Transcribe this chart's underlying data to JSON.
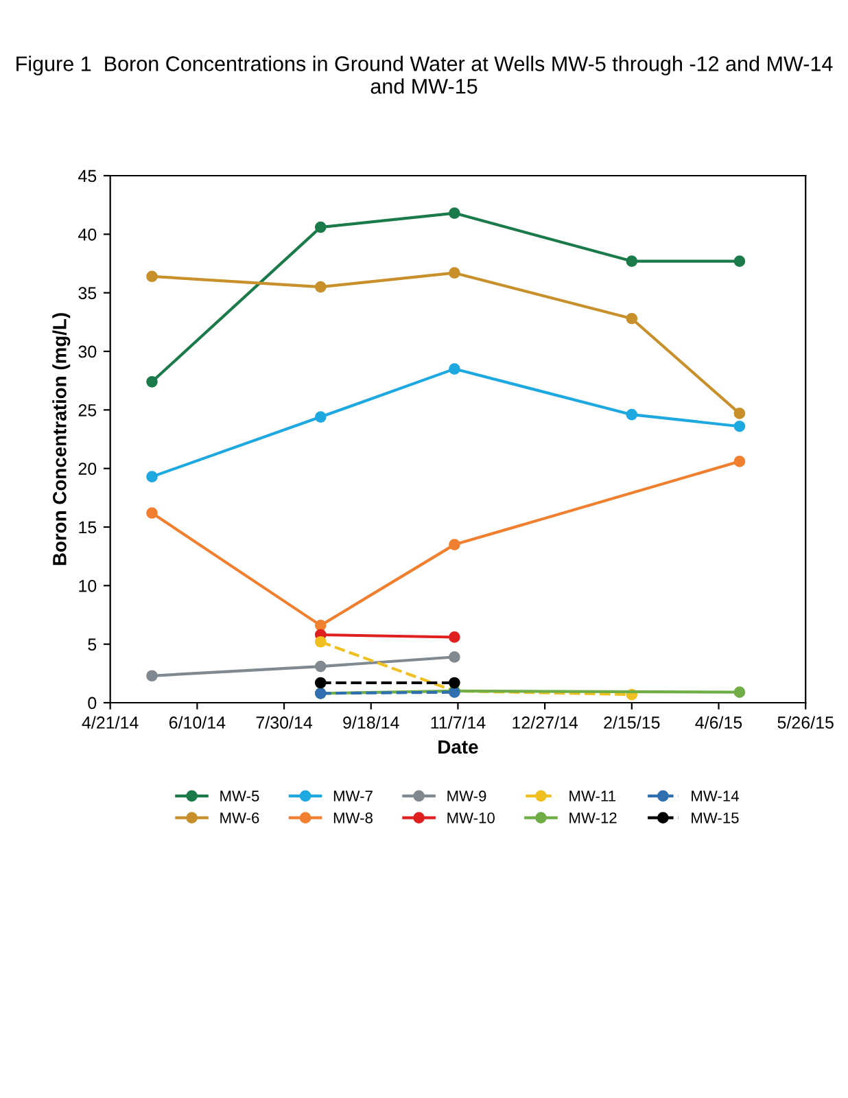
{
  "chart_data": {
    "type": "line",
    "title": "Figure 1  Boron Concentrations in Ground Water at Wells MW-5 through -12 and MW-14 and MW-15",
    "xlabel": "Date",
    "ylabel": "Boron Concentration (mg/L)",
    "x": [
      "2014-05-15",
      "2014-08-20",
      "2014-11-05",
      "2015-02-15",
      "2015-04-18"
    ],
    "xlim": [
      "2014-04-21",
      "2015-05-26"
    ],
    "xticks": [
      {
        "value": "2014-04-21",
        "label": "4/21/14"
      },
      {
        "value": "2014-06-10",
        "label": "6/10/14"
      },
      {
        "value": "2014-07-30",
        "label": "7/30/14"
      },
      {
        "value": "2014-09-18",
        "label": "9/18/14"
      },
      {
        "value": "2014-11-07",
        "label": "11/7/14"
      },
      {
        "value": "2014-12-27",
        "label": "12/27/14"
      },
      {
        "value": "2015-02-15",
        "label": "2/15/15"
      },
      {
        "value": "2015-04-06",
        "label": "4/6/15"
      },
      {
        "value": "2015-05-26",
        "label": "5/26/15"
      }
    ],
    "ylim": [
      0,
      45
    ],
    "yticks": [
      0,
      5,
      10,
      15,
      20,
      25,
      30,
      35,
      40,
      45
    ],
    "grid": false,
    "legend": "bottom",
    "marker": "circle",
    "series": [
      {
        "name": "MW-5",
        "color": "#1b7a4a",
        "values": [
          27.4,
          40.6,
          41.8,
          37.7,
          37.7
        ]
      },
      {
        "name": "MW-6",
        "color": "#c8902a",
        "values": [
          36.4,
          35.5,
          36.7,
          32.8,
          24.7
        ]
      },
      {
        "name": "MW-7",
        "color": "#1ea8e0",
        "values": [
          19.3,
          24.4,
          28.5,
          24.6,
          23.6
        ]
      },
      {
        "name": "MW-8",
        "color": "#f08030",
        "values": [
          16.2,
          6.6,
          13.5,
          null,
          20.6
        ]
      },
      {
        "name": "MW-9",
        "color": "#808890",
        "values": [
          2.3,
          3.1,
          3.9,
          null,
          null
        ]
      },
      {
        "name": "MW-10",
        "color": "#e02020",
        "values": [
          null,
          5.8,
          5.6,
          null,
          null
        ]
      },
      {
        "name": "MW-11",
        "color": "#f0c020",
        "line_style": "dashed",
        "values": [
          null,
          5.2,
          1.0,
          0.7,
          null
        ]
      },
      {
        "name": "MW-12",
        "color": "#70ad47",
        "values": [
          null,
          0.8,
          1.0,
          null,
          0.9
        ]
      },
      {
        "name": "MW-14",
        "color": "#2f6fb0",
        "line_style": "dashed",
        "values": [
          null,
          0.8,
          0.9,
          null,
          null
        ]
      },
      {
        "name": "MW-15",
        "color": "#000000",
        "line_style": "dashed",
        "values": [
          null,
          1.7,
          1.7,
          null,
          null
        ]
      }
    ]
  }
}
